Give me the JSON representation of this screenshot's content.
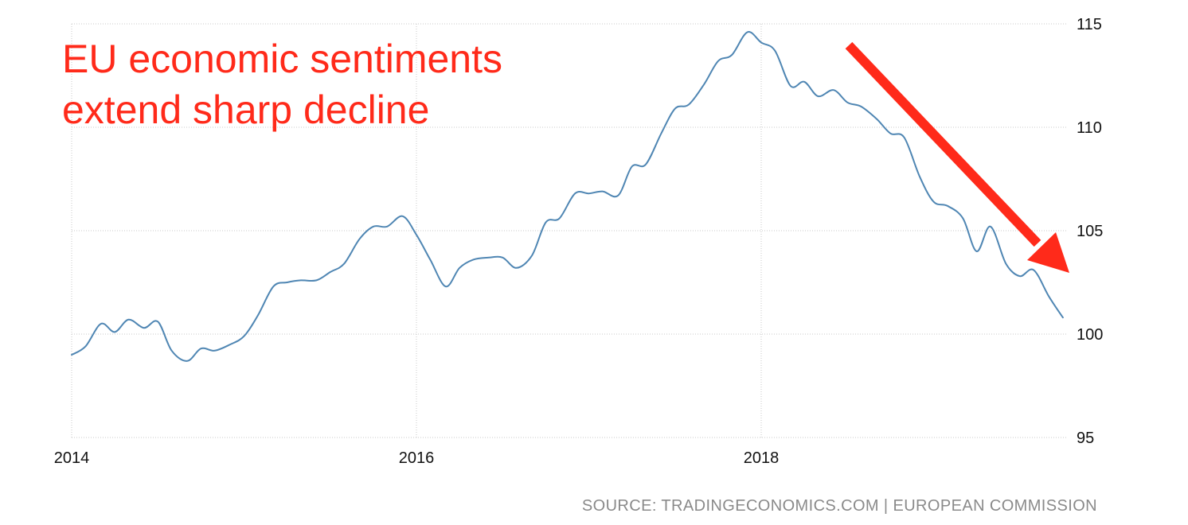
{
  "chart_data": {
    "type": "line",
    "title_lines": [
      "EU economic sentiments",
      "extend sharp decline"
    ],
    "source": "SOURCE: TRADINGECONOMICS.COM | EUROPEAN COMMISSION",
    "xlabel": "",
    "ylabel": "",
    "x_ticks": [
      {
        "label": "2014",
        "value": 2014
      },
      {
        "label": "2016",
        "value": 2016
      },
      {
        "label": "2018",
        "value": 2018
      }
    ],
    "y_ticks": [
      95,
      100,
      105,
      110,
      115
    ],
    "xlim": [
      2014,
      2019.8
    ],
    "ylim": [
      95,
      115
    ],
    "y_axis_side": "right",
    "grid": true,
    "colors": {
      "line": "#4f86b3",
      "annotation": "#ff2a1a",
      "grid": "#c8c8c8",
      "source": "#8a8a8a"
    },
    "series": [
      {
        "x": [
          2014.0,
          2014.08,
          2014.17,
          2014.25,
          2014.33,
          2014.42,
          2014.5,
          2014.58,
          2014.67,
          2014.75,
          2014.83,
          2014.92,
          2015.0,
          2015.08,
          2015.17,
          2015.25,
          2015.33,
          2015.42,
          2015.5,
          2015.58,
          2015.67,
          2015.75,
          2015.83,
          2015.92,
          2016.0,
          2016.08,
          2016.17,
          2016.25,
          2016.33,
          2016.42,
          2016.5,
          2016.58,
          2016.67,
          2016.75,
          2016.83,
          2016.92,
          2017.0,
          2017.08,
          2017.17,
          2017.25,
          2017.33,
          2017.42,
          2017.5,
          2017.58,
          2017.67,
          2017.75,
          2017.83,
          2017.92,
          2018.0,
          2018.08,
          2018.17,
          2018.25,
          2018.33,
          2018.42,
          2018.5,
          2018.58,
          2018.67,
          2018.75,
          2018.83,
          2018.92,
          2019.0,
          2019.08,
          2019.17,
          2019.25,
          2019.33,
          2019.42,
          2019.5,
          2019.58,
          2019.67,
          2019.75
        ],
        "values": [
          99.0,
          99.4,
          100.5,
          100.1,
          100.7,
          100.3,
          100.6,
          99.2,
          98.7,
          99.3,
          99.2,
          99.5,
          99.9,
          100.9,
          102.3,
          102.5,
          102.6,
          102.6,
          103.0,
          103.4,
          104.6,
          105.2,
          105.2,
          105.7,
          104.8,
          103.6,
          102.3,
          103.2,
          103.6,
          103.7,
          103.7,
          103.2,
          103.8,
          105.4,
          105.6,
          106.8,
          106.8,
          106.9,
          106.7,
          108.1,
          108.2,
          109.7,
          110.9,
          111.1,
          112.1,
          113.2,
          113.5,
          114.6,
          114.1,
          113.7,
          112.0,
          112.2,
          111.5,
          111.8,
          111.2,
          111.0,
          110.4,
          109.7,
          109.5,
          107.6,
          106.4,
          106.2,
          105.6,
          104.0,
          105.2,
          103.4,
          102.8,
          103.1,
          101.8,
          100.8
        ]
      }
    ]
  }
}
